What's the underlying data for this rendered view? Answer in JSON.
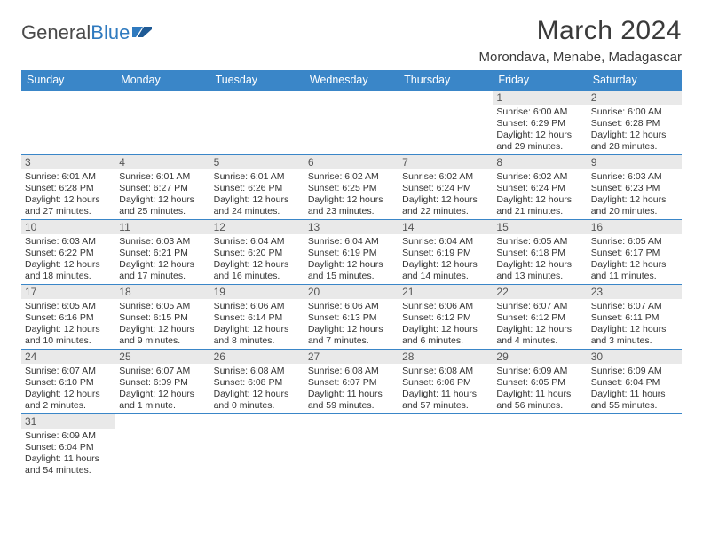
{
  "brand": {
    "part1": "General",
    "part2": "Blue"
  },
  "title": "March 2024",
  "location": "Morondava, Menabe, Madagascar",
  "header_bg": "#3a86c8",
  "daybar_bg": "#e9e9e9",
  "dow": [
    "Sunday",
    "Monday",
    "Tuesday",
    "Wednesday",
    "Thursday",
    "Friday",
    "Saturday"
  ],
  "weeks": [
    [
      null,
      null,
      null,
      null,
      null,
      {
        "n": "1",
        "sr": "Sunrise: 6:00 AM",
        "ss": "Sunset: 6:29 PM",
        "d1": "Daylight: 12 hours",
        "d2": "and 29 minutes."
      },
      {
        "n": "2",
        "sr": "Sunrise: 6:00 AM",
        "ss": "Sunset: 6:28 PM",
        "d1": "Daylight: 12 hours",
        "d2": "and 28 minutes."
      }
    ],
    [
      {
        "n": "3",
        "sr": "Sunrise: 6:01 AM",
        "ss": "Sunset: 6:28 PM",
        "d1": "Daylight: 12 hours",
        "d2": "and 27 minutes."
      },
      {
        "n": "4",
        "sr": "Sunrise: 6:01 AM",
        "ss": "Sunset: 6:27 PM",
        "d1": "Daylight: 12 hours",
        "d2": "and 25 minutes."
      },
      {
        "n": "5",
        "sr": "Sunrise: 6:01 AM",
        "ss": "Sunset: 6:26 PM",
        "d1": "Daylight: 12 hours",
        "d2": "and 24 minutes."
      },
      {
        "n": "6",
        "sr": "Sunrise: 6:02 AM",
        "ss": "Sunset: 6:25 PM",
        "d1": "Daylight: 12 hours",
        "d2": "and 23 minutes."
      },
      {
        "n": "7",
        "sr": "Sunrise: 6:02 AM",
        "ss": "Sunset: 6:24 PM",
        "d1": "Daylight: 12 hours",
        "d2": "and 22 minutes."
      },
      {
        "n": "8",
        "sr": "Sunrise: 6:02 AM",
        "ss": "Sunset: 6:24 PM",
        "d1": "Daylight: 12 hours",
        "d2": "and 21 minutes."
      },
      {
        "n": "9",
        "sr": "Sunrise: 6:03 AM",
        "ss": "Sunset: 6:23 PM",
        "d1": "Daylight: 12 hours",
        "d2": "and 20 minutes."
      }
    ],
    [
      {
        "n": "10",
        "sr": "Sunrise: 6:03 AM",
        "ss": "Sunset: 6:22 PM",
        "d1": "Daylight: 12 hours",
        "d2": "and 18 minutes."
      },
      {
        "n": "11",
        "sr": "Sunrise: 6:03 AM",
        "ss": "Sunset: 6:21 PM",
        "d1": "Daylight: 12 hours",
        "d2": "and 17 minutes."
      },
      {
        "n": "12",
        "sr": "Sunrise: 6:04 AM",
        "ss": "Sunset: 6:20 PM",
        "d1": "Daylight: 12 hours",
        "d2": "and 16 minutes."
      },
      {
        "n": "13",
        "sr": "Sunrise: 6:04 AM",
        "ss": "Sunset: 6:19 PM",
        "d1": "Daylight: 12 hours",
        "d2": "and 15 minutes."
      },
      {
        "n": "14",
        "sr": "Sunrise: 6:04 AM",
        "ss": "Sunset: 6:19 PM",
        "d1": "Daylight: 12 hours",
        "d2": "and 14 minutes."
      },
      {
        "n": "15",
        "sr": "Sunrise: 6:05 AM",
        "ss": "Sunset: 6:18 PM",
        "d1": "Daylight: 12 hours",
        "d2": "and 13 minutes."
      },
      {
        "n": "16",
        "sr": "Sunrise: 6:05 AM",
        "ss": "Sunset: 6:17 PM",
        "d1": "Daylight: 12 hours",
        "d2": "and 11 minutes."
      }
    ],
    [
      {
        "n": "17",
        "sr": "Sunrise: 6:05 AM",
        "ss": "Sunset: 6:16 PM",
        "d1": "Daylight: 12 hours",
        "d2": "and 10 minutes."
      },
      {
        "n": "18",
        "sr": "Sunrise: 6:05 AM",
        "ss": "Sunset: 6:15 PM",
        "d1": "Daylight: 12 hours",
        "d2": "and 9 minutes."
      },
      {
        "n": "19",
        "sr": "Sunrise: 6:06 AM",
        "ss": "Sunset: 6:14 PM",
        "d1": "Daylight: 12 hours",
        "d2": "and 8 minutes."
      },
      {
        "n": "20",
        "sr": "Sunrise: 6:06 AM",
        "ss": "Sunset: 6:13 PM",
        "d1": "Daylight: 12 hours",
        "d2": "and 7 minutes."
      },
      {
        "n": "21",
        "sr": "Sunrise: 6:06 AM",
        "ss": "Sunset: 6:12 PM",
        "d1": "Daylight: 12 hours",
        "d2": "and 6 minutes."
      },
      {
        "n": "22",
        "sr": "Sunrise: 6:07 AM",
        "ss": "Sunset: 6:12 PM",
        "d1": "Daylight: 12 hours",
        "d2": "and 4 minutes."
      },
      {
        "n": "23",
        "sr": "Sunrise: 6:07 AM",
        "ss": "Sunset: 6:11 PM",
        "d1": "Daylight: 12 hours",
        "d2": "and 3 minutes."
      }
    ],
    [
      {
        "n": "24",
        "sr": "Sunrise: 6:07 AM",
        "ss": "Sunset: 6:10 PM",
        "d1": "Daylight: 12 hours",
        "d2": "and 2 minutes."
      },
      {
        "n": "25",
        "sr": "Sunrise: 6:07 AM",
        "ss": "Sunset: 6:09 PM",
        "d1": "Daylight: 12 hours",
        "d2": "and 1 minute."
      },
      {
        "n": "26",
        "sr": "Sunrise: 6:08 AM",
        "ss": "Sunset: 6:08 PM",
        "d1": "Daylight: 12 hours",
        "d2": "and 0 minutes."
      },
      {
        "n": "27",
        "sr": "Sunrise: 6:08 AM",
        "ss": "Sunset: 6:07 PM",
        "d1": "Daylight: 11 hours",
        "d2": "and 59 minutes."
      },
      {
        "n": "28",
        "sr": "Sunrise: 6:08 AM",
        "ss": "Sunset: 6:06 PM",
        "d1": "Daylight: 11 hours",
        "d2": "and 57 minutes."
      },
      {
        "n": "29",
        "sr": "Sunrise: 6:09 AM",
        "ss": "Sunset: 6:05 PM",
        "d1": "Daylight: 11 hours",
        "d2": "and 56 minutes."
      },
      {
        "n": "30",
        "sr": "Sunrise: 6:09 AM",
        "ss": "Sunset: 6:04 PM",
        "d1": "Daylight: 11 hours",
        "d2": "and 55 minutes."
      }
    ],
    [
      {
        "n": "31",
        "sr": "Sunrise: 6:09 AM",
        "ss": "Sunset: 6:04 PM",
        "d1": "Daylight: 11 hours",
        "d2": "and 54 minutes."
      },
      null,
      null,
      null,
      null,
      null,
      null
    ]
  ]
}
